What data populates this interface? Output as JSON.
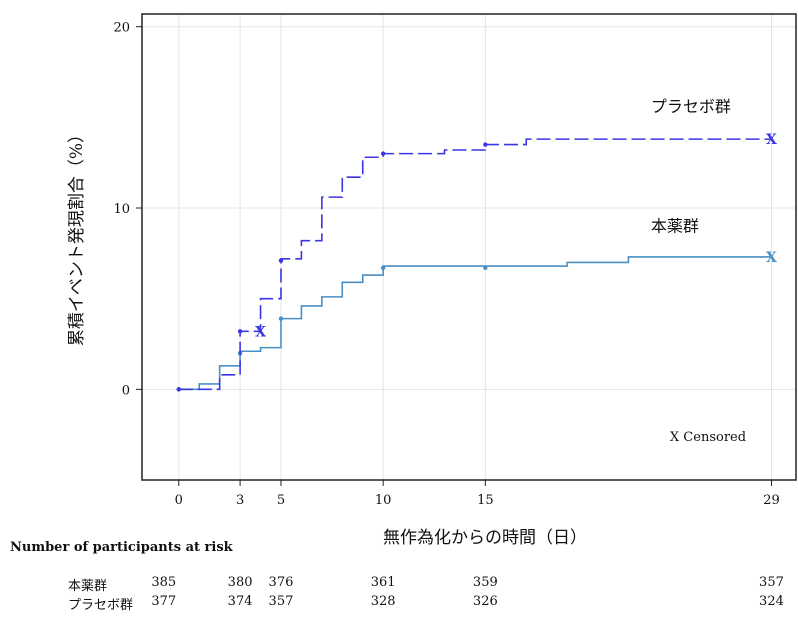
{
  "chart_data": {
    "type": "line",
    "title": "",
    "xlabel": "無作為化からの時間（日）",
    "ylabel": "累積イベント発現割合（%）",
    "xlim": [
      -1.8,
      30.2
    ],
    "ylim": [
      -5,
      20.7
    ],
    "xticks": [
      0,
      3,
      5,
      10,
      15,
      29
    ],
    "yticks": [
      0,
      10,
      20
    ],
    "grid": true,
    "legend_note": "X Censored",
    "series": [
      {
        "name": "本薬群",
        "color": "#4a8fc4",
        "linestyle": "solid",
        "steps": [
          [
            0,
            0
          ],
          [
            1,
            0.3
          ],
          [
            2,
            1.3
          ],
          [
            3,
            2.1
          ],
          [
            4,
            2.3
          ],
          [
            5,
            3.9
          ],
          [
            6,
            4.6
          ],
          [
            7,
            5.1
          ],
          [
            8,
            5.9
          ],
          [
            9,
            6.3
          ],
          [
            10,
            6.8
          ],
          [
            15,
            6.8
          ],
          [
            19,
            7.0
          ],
          [
            22,
            7.3
          ],
          [
            29,
            7.3
          ]
        ],
        "markers": [
          [
            0,
            0
          ],
          [
            3,
            2.0
          ],
          [
            5,
            3.9
          ],
          [
            10,
            6.7
          ],
          [
            15,
            6.7
          ]
        ],
        "censored": [
          [
            29,
            7.3
          ]
        ],
        "label": "本薬群",
        "label_at": [
          23.1,
          8.7
        ]
      },
      {
        "name": "プラセボ群",
        "color": "#3b35e6",
        "linestyle": "dashed",
        "steps": [
          [
            0,
            0
          ],
          [
            2,
            0.8
          ],
          [
            3,
            3.2
          ],
          [
            4,
            5.0
          ],
          [
            5,
            7.2
          ],
          [
            6,
            8.2
          ],
          [
            7,
            10.6
          ],
          [
            8,
            11.7
          ],
          [
            9,
            12.8
          ],
          [
            10,
            13.0
          ],
          [
            13,
            13.2
          ],
          [
            15,
            13.5
          ],
          [
            17,
            13.8
          ],
          [
            29,
            13.8
          ]
        ],
        "markers": [
          [
            0,
            0
          ],
          [
            3,
            3.2
          ],
          [
            5,
            7.1
          ],
          [
            10,
            13.0
          ],
          [
            15,
            13.5
          ]
        ],
        "censored": [
          [
            4,
            3.2
          ],
          [
            29,
            13.8
          ]
        ],
        "label": "プラセボ群",
        "label_at": [
          23.1,
          15.3
        ]
      }
    ]
  },
  "risk_table": {
    "title": "Number of participants at risk",
    "days": [
      0,
      3,
      5,
      10,
      15,
      29
    ],
    "rows": [
      {
        "label": "本薬群",
        "counts": [
          "385",
          "380",
          "376",
          "361",
          "359",
          "357"
        ]
      },
      {
        "label": "プラセボ群",
        "counts": [
          "377",
          "374",
          "357",
          "328",
          "326",
          "324"
        ]
      }
    ]
  }
}
